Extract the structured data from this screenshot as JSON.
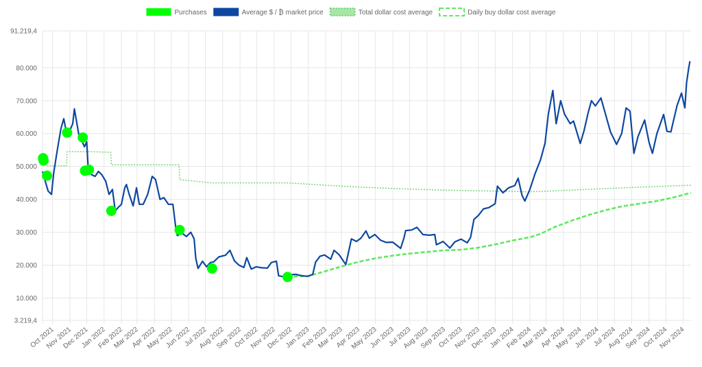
{
  "chart_data": {
    "type": "line",
    "title": "",
    "xlabel": "",
    "ylabel": "",
    "legend_position": "top-center",
    "grid": true,
    "ylim": [
      3219.4,
      91219.4
    ],
    "y_ticks": [
      {
        "value": 91219.4,
        "label": "91.219,4"
      },
      {
        "value": 80000,
        "label": "80.000"
      },
      {
        "value": 70000,
        "label": "70.000"
      },
      {
        "value": 60000,
        "label": "60.000"
      },
      {
        "value": 50000,
        "label": "50.000"
      },
      {
        "value": 40000,
        "label": "40.000"
      },
      {
        "value": 30000,
        "label": "30.000"
      },
      {
        "value": 20000,
        "label": "20.000"
      },
      {
        "value": 10000,
        "label": "10.000"
      },
      {
        "value": 3219.4,
        "label": "3.219,4"
      }
    ],
    "x_ticks": [
      "Oct 2021",
      "Nov 2021",
      "Dec 2021",
      "Jan 2022",
      "Feb 2022",
      "Mar 2022",
      "Apr 2022",
      "May 2022",
      "Jun 2022",
      "Jul 2022",
      "Aug 2022",
      "Sep 2022",
      "Oct 2022",
      "Nov 2022",
      "Dec 2022",
      "Jan 2023",
      "Feb 2023",
      "Mar 2023",
      "Apr 2023",
      "May 2023",
      "Jun 2023",
      "Jul 2023",
      "Aug 2023",
      "Sep 2023",
      "Oct 2023",
      "Nov 2023",
      "Dec 2023",
      "Jan 2024",
      "Feb 2024",
      "Mar 2024",
      "Apr 2024",
      "May 2024",
      "Jun 2024",
      "Jul 2024",
      "Aug 2024",
      "Sep 2024",
      "Oct 2024",
      "Nov 2024"
    ],
    "x_range": [
      "2021-09-13",
      "2024-11-15"
    ],
    "series": [
      {
        "name": "Purchases",
        "kind": "points",
        "color": "#00ff00",
        "points": [
          [
            "2021-09-14",
            52500
          ],
          [
            "2021-09-15",
            51800
          ],
          [
            "2021-09-21",
            47200
          ],
          [
            "2021-10-27",
            60300
          ],
          [
            "2021-11-24",
            58800
          ],
          [
            "2021-11-28",
            48700
          ],
          [
            "2021-12-05",
            49000
          ],
          [
            "2022-01-14",
            36500
          ],
          [
            "2022-05-16",
            30700
          ],
          [
            "2022-07-13",
            19000
          ],
          [
            "2022-11-25",
            16400
          ]
        ]
      },
      {
        "name": "Average $ / ₿ market price",
        "kind": "line",
        "color": "#0d47a1",
        "points": [
          [
            "2021-09-13",
            48500
          ],
          [
            "2021-09-17",
            46000
          ],
          [
            "2021-09-23",
            42500
          ],
          [
            "2021-09-29",
            41500
          ],
          [
            "2021-10-03",
            48000
          ],
          [
            "2021-10-09",
            54500
          ],
          [
            "2021-10-16",
            61500
          ],
          [
            "2021-10-21",
            64500
          ],
          [
            "2021-10-25",
            61000
          ],
          [
            "2021-11-01",
            61000
          ],
          [
            "2021-11-06",
            63000
          ],
          [
            "2021-11-09",
            67500
          ],
          [
            "2021-11-13",
            63500
          ],
          [
            "2021-11-17",
            59500
          ],
          [
            "2021-11-23",
            57500
          ],
          [
            "2021-11-27",
            56000
          ],
          [
            "2021-12-01",
            57500
          ],
          [
            "2021-12-04",
            48500
          ],
          [
            "2021-12-10",
            47500
          ],
          [
            "2021-12-16",
            47000
          ],
          [
            "2021-12-22",
            48500
          ],
          [
            "2021-12-28",
            47500
          ],
          [
            "2022-01-04",
            45500
          ],
          [
            "2022-01-10",
            41500
          ],
          [
            "2022-01-16",
            43000
          ],
          [
            "2022-01-21",
            36500
          ],
          [
            "2022-01-26",
            37500
          ],
          [
            "2022-02-01",
            38500
          ],
          [
            "2022-02-07",
            43500
          ],
          [
            "2022-02-10",
            44500
          ],
          [
            "2022-02-15",
            41500
          ],
          [
            "2022-02-22",
            38000
          ],
          [
            "2022-02-28",
            43500
          ],
          [
            "2022-03-05",
            38500
          ],
          [
            "2022-03-12",
            38500
          ],
          [
            "2022-03-20",
            41500
          ],
          [
            "2022-03-28",
            47000
          ],
          [
            "2022-04-03",
            46000
          ],
          [
            "2022-04-11",
            40000
          ],
          [
            "2022-04-18",
            40500
          ],
          [
            "2022-04-26",
            38500
          ],
          [
            "2022-05-04",
            38500
          ],
          [
            "2022-05-09",
            31500
          ],
          [
            "2022-05-12",
            29000
          ],
          [
            "2022-05-20",
            29800
          ],
          [
            "2022-05-28",
            28700
          ],
          [
            "2022-06-05",
            30000
          ],
          [
            "2022-06-11",
            28000
          ],
          [
            "2022-06-14",
            22000
          ],
          [
            "2022-06-18",
            19000
          ],
          [
            "2022-06-26",
            21200
          ],
          [
            "2022-07-03",
            19500
          ],
          [
            "2022-07-10",
            20800
          ],
          [
            "2022-07-16",
            21000
          ],
          [
            "2022-07-25",
            22500
          ],
          [
            "2022-08-06",
            23000
          ],
          [
            "2022-08-14",
            24500
          ],
          [
            "2022-08-22",
            21300
          ],
          [
            "2022-08-30",
            20000
          ],
          [
            "2022-09-08",
            19300
          ],
          [
            "2022-09-13",
            22300
          ],
          [
            "2022-09-21",
            18800
          ],
          [
            "2022-09-30",
            19500
          ],
          [
            "2022-10-10",
            19200
          ],
          [
            "2022-10-20",
            19100
          ],
          [
            "2022-10-27",
            20800
          ],
          [
            "2022-11-05",
            21200
          ],
          [
            "2022-11-09",
            16800
          ],
          [
            "2022-11-20",
            16400
          ],
          [
            "2022-11-30",
            17100
          ],
          [
            "2022-12-10",
            17200
          ],
          [
            "2022-12-20",
            16800
          ],
          [
            "2022-12-31",
            16600
          ],
          [
            "2023-01-09",
            17200
          ],
          [
            "2023-01-14",
            20900
          ],
          [
            "2023-01-22",
            22700
          ],
          [
            "2023-01-30",
            23100
          ],
          [
            "2023-02-10",
            21800
          ],
          [
            "2023-02-16",
            24500
          ],
          [
            "2023-02-25",
            23200
          ],
          [
            "2023-03-09",
            20200
          ],
          [
            "2023-03-15",
            24800
          ],
          [
            "2023-03-19",
            28000
          ],
          [
            "2023-03-28",
            27200
          ],
          [
            "2023-04-05",
            28200
          ],
          [
            "2023-04-14",
            30400
          ],
          [
            "2023-04-20",
            28200
          ],
          [
            "2023-04-30",
            29300
          ],
          [
            "2023-05-10",
            27600
          ],
          [
            "2023-05-20",
            26900
          ],
          [
            "2023-06-01",
            27000
          ],
          [
            "2023-06-15",
            25100
          ],
          [
            "2023-06-21",
            28300
          ],
          [
            "2023-06-24",
            30500
          ],
          [
            "2023-07-05",
            30700
          ],
          [
            "2023-07-14",
            31500
          ],
          [
            "2023-07-25",
            29300
          ],
          [
            "2023-08-05",
            29100
          ],
          [
            "2023-08-15",
            29300
          ],
          [
            "2023-08-18",
            26200
          ],
          [
            "2023-08-30",
            27200
          ],
          [
            "2023-09-11",
            25200
          ],
          [
            "2023-09-20",
            27100
          ],
          [
            "2023-10-01",
            27900
          ],
          [
            "2023-10-12",
            26800
          ],
          [
            "2023-10-18",
            28400
          ],
          [
            "2023-10-24",
            33900
          ],
          [
            "2023-11-01",
            35100
          ],
          [
            "2023-11-10",
            37100
          ],
          [
            "2023-11-20",
            37500
          ],
          [
            "2023-12-01",
            38700
          ],
          [
            "2023-12-05",
            44000
          ],
          [
            "2023-12-15",
            42000
          ],
          [
            "2023-12-25",
            43500
          ],
          [
            "2024-01-05",
            44200
          ],
          [
            "2024-01-11",
            46400
          ],
          [
            "2024-01-18",
            41200
          ],
          [
            "2024-01-23",
            39500
          ],
          [
            "2024-02-01",
            43000
          ],
          [
            "2024-02-10",
            47700
          ],
          [
            "2024-02-20",
            52000
          ],
          [
            "2024-02-28",
            57000
          ],
          [
            "2024-03-05",
            66000
          ],
          [
            "2024-03-13",
            73100
          ],
          [
            "2024-03-19",
            63000
          ],
          [
            "2024-03-27",
            70000
          ],
          [
            "2024-04-03",
            65900
          ],
          [
            "2024-04-13",
            63000
          ],
          [
            "2024-04-19",
            63800
          ],
          [
            "2024-05-01",
            57000
          ],
          [
            "2024-05-08",
            61000
          ],
          [
            "2024-05-15",
            66200
          ],
          [
            "2024-05-21",
            70000
          ],
          [
            "2024-05-28",
            68400
          ],
          [
            "2024-06-07",
            70800
          ],
          [
            "2024-06-15",
            66000
          ],
          [
            "2024-06-24",
            60500
          ],
          [
            "2024-07-05",
            56700
          ],
          [
            "2024-07-14",
            60000
          ],
          [
            "2024-07-22",
            67800
          ],
          [
            "2024-07-29",
            66800
          ],
          [
            "2024-08-05",
            54000
          ],
          [
            "2024-08-12",
            59000
          ],
          [
            "2024-08-24",
            64100
          ],
          [
            "2024-09-01",
            57300
          ],
          [
            "2024-09-07",
            54000
          ],
          [
            "2024-09-15",
            60000
          ],
          [
            "2024-09-27",
            65800
          ],
          [
            "2024-10-03",
            60700
          ],
          [
            "2024-10-10",
            60500
          ],
          [
            "2024-10-21",
            68500
          ],
          [
            "2024-10-29",
            72300
          ],
          [
            "2024-11-04",
            67800
          ],
          [
            "2024-11-07",
            75500
          ],
          [
            "2024-11-11",
            80000
          ],
          [
            "2024-11-13",
            82000
          ]
        ]
      },
      {
        "name": "Total dollar cost average",
        "kind": "line-dotted",
        "color": "#76d476",
        "points": [
          [
            "2021-09-13",
            52200
          ],
          [
            "2021-09-20",
            50200
          ],
          [
            "2021-10-26",
            50200
          ],
          [
            "2021-10-27",
            54500
          ],
          [
            "2021-12-04",
            54500
          ],
          [
            "2022-01-13",
            54300
          ],
          [
            "2022-01-14",
            50500
          ],
          [
            "2022-05-15",
            50500
          ],
          [
            "2022-05-16",
            46000
          ],
          [
            "2022-07-12",
            45000
          ],
          [
            "2022-11-24",
            45000
          ],
          [
            "2023-03-01",
            44000
          ],
          [
            "2023-06-01",
            43300
          ],
          [
            "2023-09-01",
            42800
          ],
          [
            "2023-12-01",
            42500
          ],
          [
            "2024-02-01",
            42300
          ],
          [
            "2024-04-01",
            42700
          ],
          [
            "2024-07-01",
            43400
          ],
          [
            "2024-11-15",
            44300
          ]
        ]
      },
      {
        "name": "Daily buy dollar cost average",
        "kind": "line-dashed",
        "color": "#5ee85e",
        "points": [
          [
            "2022-11-25",
            16500
          ],
          [
            "2022-12-15",
            16600
          ],
          [
            "2023-01-01",
            16700
          ],
          [
            "2023-02-01",
            18200
          ],
          [
            "2023-03-01",
            19600
          ],
          [
            "2023-04-01",
            21000
          ],
          [
            "2023-05-01",
            22100
          ],
          [
            "2023-06-01",
            22900
          ],
          [
            "2023-07-01",
            23500
          ],
          [
            "2023-08-01",
            24000
          ],
          [
            "2023-09-01",
            24500
          ],
          [
            "2023-10-01",
            24700
          ],
          [
            "2023-11-01",
            25300
          ],
          [
            "2023-12-01",
            26300
          ],
          [
            "2024-01-01",
            27500
          ],
          [
            "2024-02-01",
            28500
          ],
          [
            "2024-02-20",
            29500
          ],
          [
            "2024-03-15",
            31500
          ],
          [
            "2024-04-15",
            33500
          ],
          [
            "2024-05-15",
            35200
          ],
          [
            "2024-06-15",
            36700
          ],
          [
            "2024-07-15",
            37900
          ],
          [
            "2024-08-15",
            38700
          ],
          [
            "2024-09-15",
            39500
          ],
          [
            "2024-10-15",
            40600
          ],
          [
            "2024-11-15",
            42000
          ]
        ]
      }
    ]
  }
}
